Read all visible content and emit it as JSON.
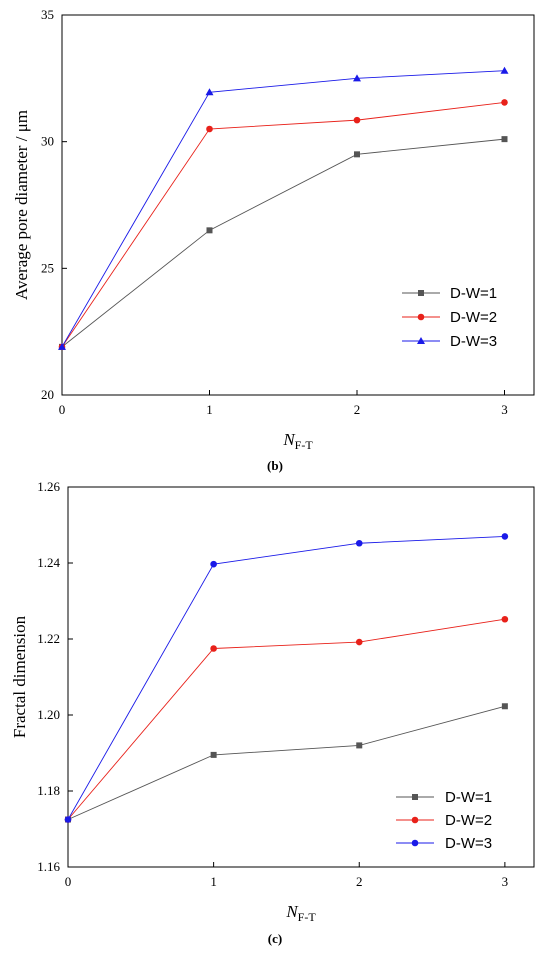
{
  "chart_data": [
    {
      "type": "line",
      "panel_label": "(b)",
      "x": [
        0,
        1,
        2,
        3
      ],
      "xticks": [
        "0",
        "1",
        "2",
        "3"
      ],
      "xlim": [
        0,
        3.2
      ],
      "ylim": [
        20,
        35
      ],
      "yticks": [
        "20",
        "25",
        "30",
        "35"
      ],
      "ytick_values": [
        20,
        25,
        30,
        35
      ],
      "xlabel_main": "N",
      "xlabel_sub": "F-T",
      "ylabel": "Average pore diameter / μm",
      "legend_position": "bottom-right",
      "series": [
        {
          "name": "D-W=1",
          "color": "#555555",
          "marker": "square",
          "values": [
            21.9,
            26.5,
            29.5,
            30.1
          ]
        },
        {
          "name": "D-W=2",
          "color": "#e8211a",
          "marker": "circle",
          "values": [
            21.9,
            30.5,
            30.85,
            31.55
          ]
        },
        {
          "name": "D-W=3",
          "color": "#1a1ae8",
          "marker": "triangle",
          "values": [
            21.9,
            31.95,
            32.5,
            32.8
          ]
        }
      ]
    },
    {
      "type": "line",
      "panel_label": "(c)",
      "x": [
        0,
        1,
        2,
        3
      ],
      "xticks": [
        "0",
        "1",
        "2",
        "3"
      ],
      "xlim": [
        0,
        3.2
      ],
      "ylim": [
        1.16,
        1.26
      ],
      "yticks": [
        "1.16",
        "1.18",
        "1.20",
        "1.22",
        "1.24",
        "1.26"
      ],
      "ytick_values": [
        1.16,
        1.18,
        1.2,
        1.22,
        1.24,
        1.26
      ],
      "xlabel_main": "N",
      "xlabel_sub": "F-T",
      "ylabel": "Fractal dimension",
      "legend_position": "bottom-right",
      "series": [
        {
          "name": "D-W=1",
          "color": "#555555",
          "marker": "square",
          "values": [
            1.1725,
            1.1895,
            1.192,
            1.2023
          ]
        },
        {
          "name": "D-W=2",
          "color": "#e8211a",
          "marker": "circle",
          "values": [
            1.1725,
            1.2175,
            1.2192,
            1.2252
          ]
        },
        {
          "name": "D-W=3",
          "color": "#1a1ae8",
          "marker": "circle",
          "values": [
            1.1725,
            1.2397,
            1.2452,
            1.247
          ]
        }
      ]
    }
  ]
}
